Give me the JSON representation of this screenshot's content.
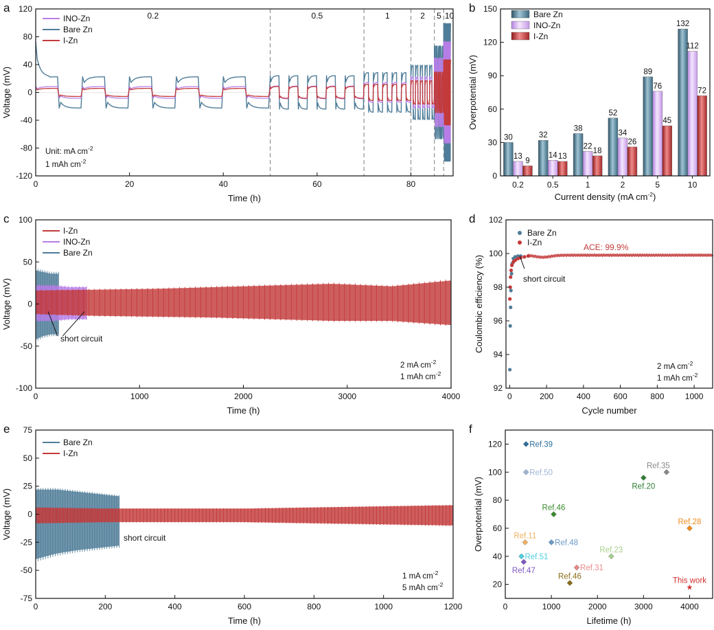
{
  "colors": {
    "bare": "#4f7c98",
    "ino": "#b77de6",
    "iz": "#c33a3a",
    "axis": "#111111",
    "dash": "#8a8a8a"
  },
  "panels": [
    {
      "id": "a",
      "letter": "a"
    },
    {
      "id": "b",
      "letter": "b"
    },
    {
      "id": "c",
      "letter": "c"
    },
    {
      "id": "d",
      "letter": "d"
    },
    {
      "id": "e",
      "letter": "e"
    },
    {
      "id": "f",
      "letter": "f"
    }
  ],
  "chart_data": [
    {
      "id": "a",
      "type": "line",
      "title": "",
      "xlabel": "Time (h)",
      "ylabel": "Voltage (mV)",
      "xlim": [
        0,
        89
      ],
      "ylim": [
        -120,
        120
      ],
      "xticks": [
        0,
        20,
        40,
        60,
        80
      ],
      "yticks": [
        -120,
        -80,
        -40,
        0,
        40,
        80,
        120
      ],
      "legend": [
        {
          "name": "INO-Zn",
          "color": "ino"
        },
        {
          "name": "Bare Zn",
          "color": "bare"
        },
        {
          "name": "I-Zn",
          "color": "iz"
        }
      ],
      "dividers": [
        50,
        70,
        80,
        85,
        87
      ],
      "rate_labels": [
        {
          "text": "0.2",
          "x": 25
        },
        {
          "text": "0.5",
          "x": 60
        },
        {
          "text": "1",
          "x": 75
        },
        {
          "text": "2",
          "x": 82.5
        },
        {
          "text": "5",
          "x": 86
        },
        {
          "text": "10",
          "x": 88.2
        }
      ],
      "segments": [
        {
          "start": 0,
          "end": 50,
          "period": 10,
          "bare": 30,
          "ino": 13,
          "iz": 9
        },
        {
          "start": 50,
          "end": 70,
          "period": 4,
          "bare": 32,
          "ino": 14,
          "iz": 13
        },
        {
          "start": 70,
          "end": 80,
          "period": 2,
          "bare": 38,
          "ino": 22,
          "iz": 18
        },
        {
          "start": 80,
          "end": 85,
          "period": 1,
          "bare": 52,
          "ino": 34,
          "iz": 26
        },
        {
          "start": 85,
          "end": 87,
          "period": 0.4,
          "bare": 89,
          "ino": 76,
          "iz": 45
        },
        {
          "start": 87,
          "end": 88.5,
          "period": 0.2,
          "bare": 132,
          "ino": 112,
          "iz": 72
        }
      ],
      "annotations": [
        "Unit: mA cm⁻²",
        "1 mAh cm⁻²"
      ]
    },
    {
      "id": "b",
      "type": "bar",
      "title": "",
      "xlabel": "Current density (mA cm⁻²)",
      "ylabel": "Overpotential (mV)",
      "ylim": [
        0,
        150
      ],
      "yticks": [
        0,
        30,
        60,
        90,
        120,
        150
      ],
      "categories": [
        "0.2",
        "0.5",
        "1",
        "2",
        "5",
        "10"
      ],
      "series": [
        {
          "name": "Bare Zn",
          "color": "bare",
          "values": [
            30,
            32,
            38,
            52,
            89,
            132
          ]
        },
        {
          "name": "INO-Zn",
          "color": "ino",
          "values": [
            13,
            14,
            22,
            34,
            76,
            112
          ]
        },
        {
          "name": "I-Zn",
          "color": "iz",
          "values": [
            9,
            13,
            18,
            26,
            45,
            72
          ]
        }
      ]
    },
    {
      "id": "c",
      "type": "area",
      "title": "",
      "xlabel": "Time (h)",
      "ylabel": "Voltage (mV)",
      "xlim": [
        0,
        4000
      ],
      "ylim": [
        -100,
        100
      ],
      "xticks": [
        0,
        1000,
        2000,
        3000,
        4000
      ],
      "yticks": [
        -100,
        -50,
        0,
        50,
        100
      ],
      "legend": [
        {
          "name": "I-Zn",
          "color": "iz"
        },
        {
          "name": "INO-Zn",
          "color": "ino"
        },
        {
          "name": "Bare Zn",
          "color": "bare"
        }
      ],
      "series": [
        {
          "name": "Bare Zn",
          "color": "bare",
          "end": 220,
          "top": [
            40,
            38,
            36,
            36
          ],
          "bottom": [
            -42,
            -38,
            -36,
            -36
          ]
        },
        {
          "name": "INO-Zn",
          "color": "ino",
          "end": 490,
          "top": [
            22,
            22,
            20,
            20
          ],
          "bottom": [
            -20,
            -20,
            -18,
            -18
          ]
        },
        {
          "name": "I-Zn",
          "color": "iz",
          "end": 4000,
          "top": [
            16,
            17,
            18,
            20,
            22,
            24,
            21,
            28
          ],
          "bottom": [
            -12,
            -14,
            -15,
            -16,
            -18,
            -20,
            -20,
            -25
          ]
        }
      ],
      "annotations": [
        "short circuit",
        "2 mA cm⁻²",
        "1 mAh cm⁻²"
      ]
    },
    {
      "id": "d",
      "type": "scatter",
      "title": "",
      "xlabel": "Cycle number",
      "ylabel": "Coulombic efficiency (%)",
      "xlim": [
        -20,
        1100
      ],
      "ylim": [
        92,
        102
      ],
      "xticks": [
        0,
        200,
        400,
        600,
        800,
        1000
      ],
      "yticks": [
        92,
        94,
        96,
        98,
        100,
        102
      ],
      "legend": [
        {
          "name": "Bare Zn",
          "color": "bare"
        },
        {
          "name": "I-Zn",
          "color": "iz"
        }
      ],
      "series": [
        {
          "name": "Bare Zn",
          "color": "bare",
          "points": [
            [
              1,
              93.1
            ],
            [
              3,
              95.7
            ],
            [
              5,
              96.8
            ],
            [
              7,
              97.8
            ],
            [
              10,
              98.8
            ],
            [
              14,
              99.4
            ],
            [
              20,
              99.7
            ],
            [
              30,
              99.8
            ],
            [
              45,
              99.85
            ],
            [
              60,
              99.85
            ]
          ]
        },
        {
          "name": "I-Zn",
          "color": "iz",
          "points": [
            [
              1,
              97.3
            ],
            [
              3,
              98.0
            ],
            [
              5,
              98.6
            ],
            [
              8,
              99.0
            ],
            [
              12,
              99.3
            ],
            [
              20,
              99.5
            ],
            [
              30,
              99.6
            ],
            [
              45,
              99.7
            ],
            [
              60,
              99.75
            ],
            [
              80,
              99.8
            ],
            [
              100,
              99.85
            ]
          ]
        }
      ],
      "plateau_value": 99.9,
      "plateau_range": [
        100,
        1100
      ],
      "annotations": [
        "ACE: 99.9%",
        "short circuit",
        "2 mA cm⁻²",
        "1 mAh cm⁻²"
      ]
    },
    {
      "id": "e",
      "type": "area",
      "title": "",
      "xlabel": "Time (h)",
      "ylabel": "Voltage (mV)",
      "xlim": [
        0,
        1200
      ],
      "ylim": [
        -75,
        75
      ],
      "xticks": [
        0,
        200,
        400,
        600,
        800,
        1000,
        1200
      ],
      "yticks": [
        -75,
        -50,
        -25,
        0,
        25,
        50,
        75
      ],
      "legend": [
        {
          "name": "Bare Zn",
          "color": "bare"
        },
        {
          "name": "I-Zn",
          "color": "iz"
        }
      ],
      "series": [
        {
          "name": "Bare Zn",
          "color": "bare",
          "end": 240,
          "top": [
            22,
            22,
            20,
            18,
            16
          ],
          "bottom": [
            -40,
            -35,
            -32,
            -30,
            -28
          ]
        },
        {
          "name": "I-Zn",
          "color": "iz",
          "end": 1200,
          "top": [
            6,
            5,
            5,
            5,
            6,
            7,
            8
          ],
          "bottom": [
            -8,
            -7,
            -7,
            -7,
            -8,
            -9,
            -10
          ]
        }
      ],
      "annotations": [
        "short circuit",
        "1 mA cm⁻²",
        "5 mAh cm⁻²"
      ]
    },
    {
      "id": "f",
      "type": "scatter",
      "title": "",
      "xlabel": "Lifetime (h)",
      "ylabel": "Overpotential (mV)",
      "xlim": [
        0,
        4500
      ],
      "ylim": [
        10,
        130
      ],
      "xticks": [
        0,
        1000,
        2000,
        3000,
        4000
      ],
      "yticks": [
        20,
        40,
        60,
        80,
        100,
        120
      ],
      "points": [
        {
          "label": "Ref.39",
          "x": 450,
          "y": 120,
          "color": "#2e6f9e",
          "pos": "right"
        },
        {
          "label": "Ref.50",
          "x": 450,
          "y": 100,
          "color": "#9fb5d6",
          "pos": "right"
        },
        {
          "label": "Ref.35",
          "x": 3500,
          "y": 100,
          "color": "#888888",
          "pos": "upleft"
        },
        {
          "label": "Ref.20",
          "x": 3000,
          "y": 96,
          "color": "#2e7d32",
          "pos": "below"
        },
        {
          "label": "Ref.46",
          "x": 1050,
          "y": 70,
          "color": "#3a8a2e",
          "pos": "above"
        },
        {
          "label": "Ref.28",
          "x": 4000,
          "y": 60,
          "color": "#f08a1c",
          "pos": "above"
        },
        {
          "label": "Ref.11",
          "x": 430,
          "y": 50,
          "color": "#f0b060",
          "pos": "above"
        },
        {
          "label": "Ref.48",
          "x": 1000,
          "y": 50,
          "color": "#6a9ac8",
          "pos": "right"
        },
        {
          "label": "Ref.23",
          "x": 2300,
          "y": 40,
          "color": "#a8d08d",
          "pos": "above"
        },
        {
          "label": "Ref.51",
          "x": 350,
          "y": 40,
          "color": "#4dd0e1",
          "pos": "right"
        },
        {
          "label": "Ref.47",
          "x": 400,
          "y": 36,
          "color": "#7e57c2",
          "pos": "below"
        },
        {
          "label": "Ref.31",
          "x": 1550,
          "y": 32,
          "color": "#e88888",
          "pos": "right"
        },
        {
          "label": "Ref.46",
          "x": 1400,
          "y": 21,
          "color": "#8a6d1a",
          "pos": "above"
        },
        {
          "label": "This work",
          "x": 4000,
          "y": 18,
          "color": "#d32f2f",
          "pos": "above",
          "star": true
        }
      ]
    }
  ]
}
